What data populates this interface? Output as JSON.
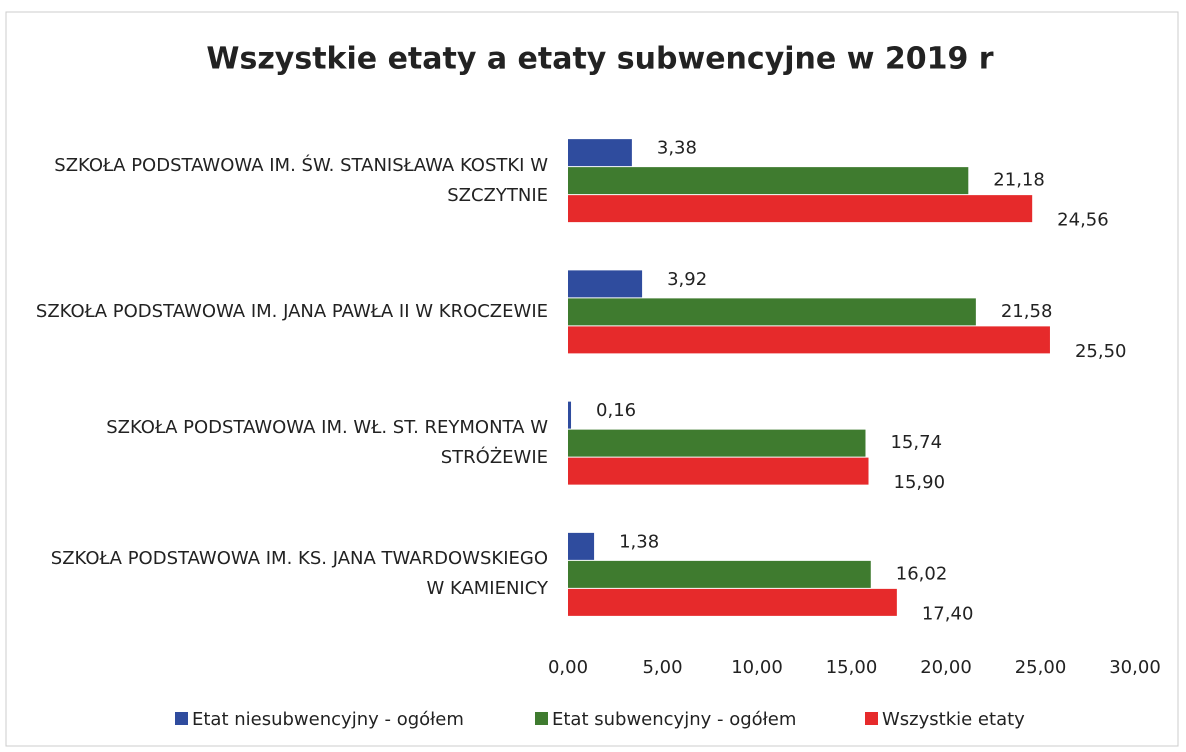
{
  "chart_data": {
    "type": "bar",
    "orientation": "horizontal",
    "title": "Wszystkie etaty a etaty subwencyjne w 2019 r",
    "categories": [
      "SZKOŁA PODSTAWOWA IM. ŚW. STANISŁAWA KOSTKI W SZCZYTNIE",
      "SZKOŁA PODSTAWOWA IM. JANA PAWŁA II W KROCZEWIE",
      "SZKOŁA PODSTAWOWA IM. WŁ. ST. REYMONTA W STRÓŻEWIE",
      "SZKOŁA PODSTAWOWA IM. KS. JANA TWARDOWSKIEGO W KAMIENICY"
    ],
    "series": [
      {
        "name": "Etat niesubwencyjny - ogółem",
        "color": "#2f4c9e",
        "values": [
          3.38,
          3.92,
          0.16,
          1.38
        ],
        "value_labels": [
          "3,38",
          "3,92",
          "0,16",
          "1,38"
        ]
      },
      {
        "name": "Etat subwencyjny - ogółem",
        "color": "#3f7b2f",
        "values": [
          21.18,
          21.58,
          15.74,
          16.02
        ],
        "value_labels": [
          "21,18",
          "21,58",
          "15,74",
          "16,02"
        ]
      },
      {
        "name": "Wszystkie etaty",
        "color": "#e62a2b",
        "values": [
          24.56,
          25.5,
          15.9,
          17.4
        ],
        "value_labels": [
          "24,56",
          "25,50",
          "15,90",
          "17,40"
        ]
      }
    ],
    "xlim": [
      0,
      30
    ],
    "xticks": [
      {
        "value": 0,
        "label": "0,00"
      },
      {
        "value": 5,
        "label": "5,00"
      },
      {
        "value": 10,
        "label": "10,00"
      },
      {
        "value": 15,
        "label": "15,00"
      },
      {
        "value": 20,
        "label": "20,00"
      },
      {
        "value": 25,
        "label": "25,00"
      },
      {
        "value": 30,
        "label": "30,00"
      }
    ],
    "legend": "bottom"
  }
}
